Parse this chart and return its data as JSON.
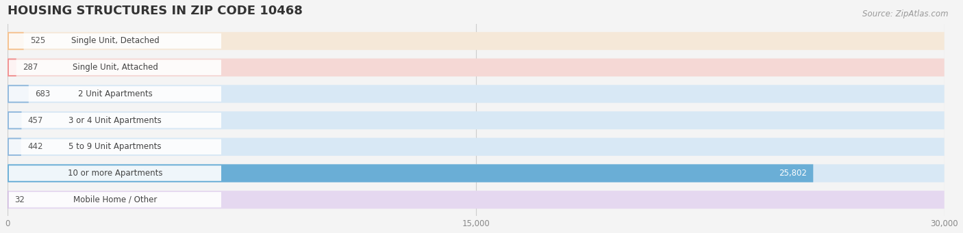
{
  "title": "HOUSING STRUCTURES IN ZIP CODE 10468",
  "source": "Source: ZipAtlas.com",
  "categories": [
    "Single Unit, Detached",
    "Single Unit, Attached",
    "2 Unit Apartments",
    "3 or 4 Unit Apartments",
    "5 to 9 Unit Apartments",
    "10 or more Apartments",
    "Mobile Home / Other"
  ],
  "values": [
    525,
    287,
    683,
    457,
    442,
    25802,
    32
  ],
  "bar_colors": [
    "#f5c18e",
    "#f09090",
    "#90b8dc",
    "#90b8dc",
    "#90b8dc",
    "#6aaed6",
    "#c8b0d8"
  ],
  "bar_bg_colors": [
    "#f5e8d8",
    "#f5d8d5",
    "#d8e8f5",
    "#d8e8f5",
    "#d8e8f5",
    "#d8e8f5",
    "#e5d8f0"
  ],
  "xlim": [
    0,
    30000
  ],
  "xticks": [
    0,
    15000,
    30000
  ],
  "xtick_labels": [
    "0",
    "15,000",
    "30,000"
  ],
  "background_color": "#f4f4f4",
  "title_fontsize": 13,
  "label_fontsize": 8.5,
  "value_fontsize": 8.5,
  "source_fontsize": 8.5
}
